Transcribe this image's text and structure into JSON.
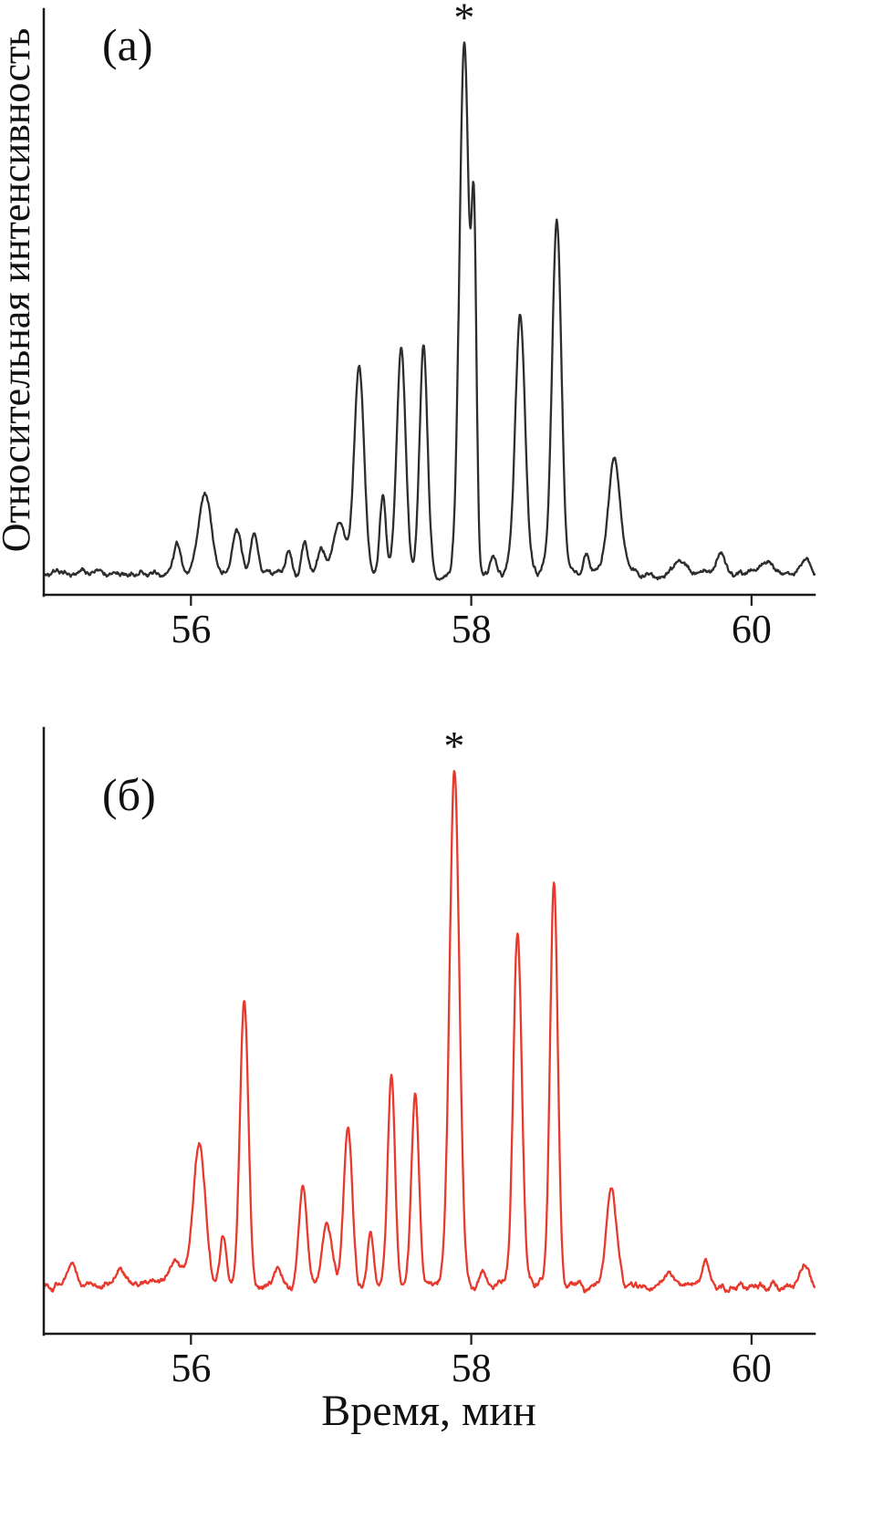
{
  "figure": {
    "ylabel": "Относительная интенсивность",
    "xlabel": "Время, мин",
    "background": "#ffffff",
    "axis_color": "#1a1a1a"
  },
  "chart_data": [
    {
      "type": "line",
      "panel_label": "(а)",
      "series_name": "chromatogram-a",
      "color": "#2d2d2d",
      "x_range": [
        54.95,
        60.45
      ],
      "x_ticks": [
        56,
        58,
        60
      ],
      "x_tick_labels": [
        "56",
        "58",
        "60"
      ],
      "xlabel": "Время, мин",
      "ylabel": "Относительная интенсивность",
      "annotation": "*",
      "annotation_x": 57.95,
      "baseline": 0.028,
      "noise_amplitude": 0.008,
      "peaks": [
        {
          "t": 55.9,
          "h": 0.05,
          "w": 0.025
        },
        {
          "t": 56.1,
          "h": 0.15,
          "w": 0.045
        },
        {
          "t": 56.33,
          "h": 0.09,
          "w": 0.028
        },
        {
          "t": 56.45,
          "h": 0.07,
          "w": 0.028
        },
        {
          "t": 56.7,
          "h": 0.04,
          "w": 0.022
        },
        {
          "t": 56.81,
          "h": 0.06,
          "w": 0.022
        },
        {
          "t": 56.93,
          "h": 0.045,
          "w": 0.028
        },
        {
          "t": 57.06,
          "h": 0.09,
          "w": 0.045
        },
        {
          "t": 57.2,
          "h": 0.4,
          "w": 0.035
        },
        {
          "t": 57.37,
          "h": 0.15,
          "w": 0.022
        },
        {
          "t": 57.5,
          "h": 0.43,
          "w": 0.032
        },
        {
          "t": 57.66,
          "h": 0.425,
          "w": 0.028
        },
        {
          "t": 57.95,
          "h": 1.0,
          "w": 0.034
        },
        {
          "t": 58.02,
          "h": 0.6,
          "w": 0.018
        },
        {
          "t": 58.16,
          "h": 0.03,
          "w": 0.02
        },
        {
          "t": 58.35,
          "h": 0.48,
          "w": 0.035
        },
        {
          "t": 58.61,
          "h": 0.66,
          "w": 0.033
        },
        {
          "t": 58.82,
          "h": 0.03,
          "w": 0.025
        },
        {
          "t": 59.02,
          "h": 0.21,
          "w": 0.045
        },
        {
          "t": 59.5,
          "h": 0.02,
          "w": 0.05
        },
        {
          "t": 59.78,
          "h": 0.04,
          "w": 0.025
        },
        {
          "t": 60.12,
          "h": 0.02,
          "w": 0.03
        },
        {
          "t": 60.38,
          "h": 0.03,
          "w": 0.03
        }
      ]
    },
    {
      "type": "line",
      "panel_label": "(б)",
      "series_name": "chromatogram-b",
      "color": "#e8392c",
      "x_range": [
        54.95,
        60.45
      ],
      "x_ticks": [
        56,
        58,
        60
      ],
      "x_tick_labels": [
        "56",
        "58",
        "60"
      ],
      "xlabel": "Время, мин",
      "ylabel": "Относительная интенсивность",
      "annotation": "*",
      "annotation_x": 57.88,
      "baseline": 0.045,
      "noise_amplitude": 0.01,
      "peaks": [
        {
          "t": 55.15,
          "h": 0.04,
          "w": 0.03
        },
        {
          "t": 55.5,
          "h": 0.03,
          "w": 0.03
        },
        {
          "t": 55.9,
          "h": 0.05,
          "w": 0.05
        },
        {
          "t": 56.06,
          "h": 0.28,
          "w": 0.042
        },
        {
          "t": 56.23,
          "h": 0.095,
          "w": 0.025
        },
        {
          "t": 56.38,
          "h": 0.545,
          "w": 0.03
        },
        {
          "t": 56.62,
          "h": 0.035,
          "w": 0.025
        },
        {
          "t": 56.8,
          "h": 0.19,
          "w": 0.028
        },
        {
          "t": 56.97,
          "h": 0.12,
          "w": 0.035
        },
        {
          "t": 57.12,
          "h": 0.31,
          "w": 0.03
        },
        {
          "t": 57.28,
          "h": 0.11,
          "w": 0.022
        },
        {
          "t": 57.43,
          "h": 0.41,
          "w": 0.026
        },
        {
          "t": 57.6,
          "h": 0.37,
          "w": 0.026
        },
        {
          "t": 57.88,
          "h": 1.0,
          "w": 0.035
        },
        {
          "t": 58.08,
          "h": 0.04,
          "w": 0.022
        },
        {
          "t": 58.33,
          "h": 0.695,
          "w": 0.03
        },
        {
          "t": 58.59,
          "h": 0.79,
          "w": 0.027
        },
        {
          "t": 59.0,
          "h": 0.19,
          "w": 0.035
        },
        {
          "t": 59.42,
          "h": 0.025,
          "w": 0.04
        },
        {
          "t": 59.67,
          "h": 0.05,
          "w": 0.025
        },
        {
          "t": 60.38,
          "h": 0.035,
          "w": 0.03
        }
      ]
    }
  ]
}
